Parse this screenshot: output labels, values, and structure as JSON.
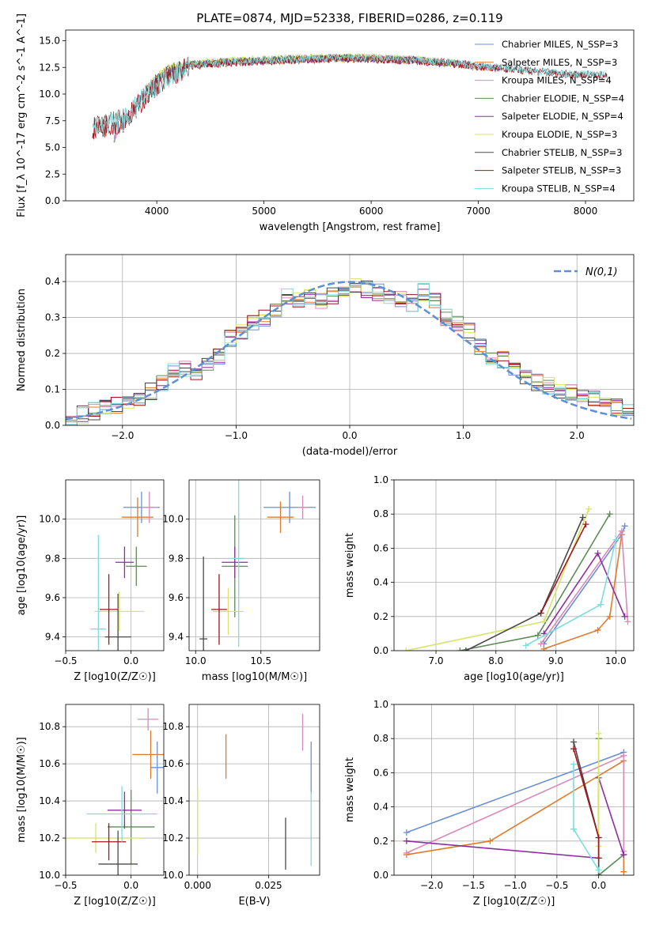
{
  "figure_title": "PLATE=0874, MJD=52338, FIBERID=0286, z=0.119",
  "model_colors": [
    "#6a8fd8",
    "#e07b2a",
    "#d98ab8",
    "#5f8a5a",
    "#8e2ea0",
    "#d7e46a",
    "#4a4a4a",
    "#a3141e",
    "#7fdcdc"
  ],
  "chart_data": [
    {
      "name": "spectrum",
      "type": "line",
      "xlabel": "wavelength [Angstrom, rest frame]",
      "ylabel": "Flux [f_λ 10^-17 erg cm^-2 s^-1 A^-1]",
      "xlim": [
        3150,
        8450
      ],
      "ylim": [
        0,
        16
      ],
      "xticks": [
        4000,
        5000,
        6000,
        7000,
        8000
      ],
      "yticks": [
        0.0,
        2.5,
        5.0,
        7.5,
        10.0,
        12.5,
        15.0
      ],
      "legend_position": "right",
      "series": [
        {
          "name": "Chabrier MILES, N_SSP=3",
          "color": "#6a8fd8",
          "x": [
            3600,
            3800,
            4000,
            4300,
            4600,
            5000,
            5500,
            6000,
            6500,
            7000,
            7200
          ],
          "y": [
            5.8,
            9.0,
            11.5,
            12.8,
            13.0,
            13.2,
            13.4,
            13.4,
            13.2,
            12.6,
            12.4
          ]
        },
        {
          "name": "Salpeter MILES, N_SSP=3",
          "color": "#e07b2a",
          "x": [
            3600,
            3800,
            4000,
            4300,
            4600,
            5000,
            5500,
            6000,
            6500,
            7000,
            7200
          ],
          "y": [
            5.7,
            8.9,
            11.4,
            12.7,
            12.9,
            13.1,
            13.3,
            13.3,
            13.1,
            12.5,
            12.3
          ]
        },
        {
          "name": "Kroupa MILES, N_SSP=4",
          "color": "#d98ab8",
          "x": [
            3600,
            3800,
            4000,
            4300,
            4600,
            5000,
            5500,
            6000,
            6500,
            7000,
            7200
          ],
          "y": [
            5.8,
            9.0,
            11.5,
            12.8,
            13.0,
            13.2,
            13.4,
            13.4,
            13.2,
            12.6,
            12.4
          ]
        },
        {
          "name": "Chabrier ELODIE, N_SSP=4",
          "color": "#5f8a5a",
          "x": [
            3900,
            4100,
            4400,
            4800,
            5200,
            5600,
            6000,
            6400,
            6800
          ],
          "y": [
            10.5,
            12.4,
            12.9,
            13.1,
            13.3,
            13.4,
            13.4,
            13.2,
            12.8
          ]
        },
        {
          "name": "Salpeter ELODIE, N_SSP=4",
          "color": "#8e2ea0",
          "x": [
            3900,
            4100,
            4400,
            4800,
            5200,
            5600,
            6000,
            6400,
            6800
          ],
          "y": [
            10.4,
            12.3,
            12.8,
            13.0,
            13.2,
            13.3,
            13.3,
            13.1,
            12.7
          ]
        },
        {
          "name": "Kroupa ELODIE, N_SSP=3",
          "color": "#d7e46a",
          "x": [
            3900,
            4100,
            4400,
            4800,
            5200,
            5600,
            6000,
            6400,
            6800
          ],
          "y": [
            10.6,
            12.5,
            13.0,
            13.2,
            13.4,
            13.5,
            13.5,
            13.3,
            12.9
          ]
        },
        {
          "name": "Chabrier STELIB, N_SSP=3",
          "color": "#4a4a4a",
          "x": [
            3400,
            3700,
            4000,
            4300,
            4700,
            5200,
            5700,
            6200,
            6700,
            7200,
            7700,
            8200
          ],
          "y": [
            6.8,
            7.6,
            11.0,
            12.7,
            13.0,
            13.2,
            13.4,
            13.3,
            13.0,
            12.5,
            12.0,
            11.8
          ]
        },
        {
          "name": "Salpeter STELIB, N_SSP=3",
          "color": "#a3141e",
          "x": [
            3400,
            3700,
            4000,
            4300,
            4700,
            5200,
            5700,
            6200,
            6700,
            7200,
            7700,
            8200
          ],
          "y": [
            6.7,
            7.5,
            10.9,
            12.6,
            12.9,
            13.1,
            13.3,
            13.2,
            12.9,
            12.4,
            11.9,
            11.7
          ]
        },
        {
          "name": "Kroupa STELIB, N_SSP=4",
          "color": "#7fdcdc",
          "x": [
            3400,
            3700,
            4000,
            4300,
            4700,
            5200,
            5700,
            6200,
            6700,
            7200,
            7700,
            8200
          ],
          "y": [
            6.8,
            7.6,
            11.0,
            12.7,
            13.0,
            13.2,
            13.4,
            13.3,
            13.0,
            12.5,
            12.0,
            11.8
          ]
        }
      ]
    },
    {
      "name": "residuals",
      "type": "histogram",
      "xlabel": "(data-model)/error",
      "ylabel": "Normed distribution",
      "xlim": [
        -2.5,
        2.5
      ],
      "ylim": [
        0,
        0.475
      ],
      "xticks": [
        -2,
        -1,
        0,
        1,
        2
      ],
      "yticks": [
        0.0,
        0.1,
        0.2,
        0.3,
        0.4
      ],
      "grid": true,
      "legend_position": "top-right",
      "reference_curve": {
        "name": "N(0,1)",
        "mean": 0,
        "sigma": 1,
        "color": "#5b8fd6"
      },
      "bin_edges": [
        -2.5,
        -2.4,
        -2.3,
        -2.2,
        -2.1,
        -2.0,
        -1.9,
        -1.8,
        -1.7,
        -1.6,
        -1.5,
        -1.4,
        -1.3,
        -1.2,
        -1.1,
        -1.0,
        -0.9,
        -0.8,
        -0.7,
        -0.6,
        -0.5,
        -0.4,
        -0.3,
        -0.2,
        -0.1,
        0.0,
        0.1,
        0.2,
        0.3,
        0.4,
        0.5,
        0.6,
        0.7,
        0.8,
        0.9,
        1.0,
        1.1,
        1.2,
        1.3,
        1.4,
        1.5,
        1.6,
        1.7,
        1.8,
        1.9,
        2.0,
        2.1,
        2.2,
        2.3,
        2.4,
        2.5
      ],
      "approx_density": [
        0.02,
        0.03,
        0.04,
        0.05,
        0.055,
        0.06,
        0.08,
        0.095,
        0.12,
        0.15,
        0.16,
        0.15,
        0.17,
        0.19,
        0.24,
        0.26,
        0.29,
        0.3,
        0.32,
        0.36,
        0.35,
        0.36,
        0.35,
        0.36,
        0.38,
        0.39,
        0.38,
        0.37,
        0.36,
        0.35,
        0.34,
        0.37,
        0.35,
        0.3,
        0.28,
        0.26,
        0.22,
        0.19,
        0.18,
        0.16,
        0.14,
        0.12,
        0.11,
        0.1,
        0.09,
        0.08,
        0.07,
        0.055,
        0.05,
        0.04
      ]
    },
    {
      "name": "age-vs-Z",
      "type": "errorbar",
      "xlabel": "Z [log10(Z/Z☉)]",
      "ylabel": "age [log10(age/yr)]",
      "xlim": [
        -0.5,
        0.25
      ],
      "ylim": [
        9.33,
        10.2
      ],
      "xticks": [
        -0.5,
        0.0
      ],
      "yticks": [
        9.4,
        9.6,
        9.8,
        10.0
      ],
      "grid": true,
      "points": [
        {
          "x": 0.08,
          "y": 10.06,
          "xerr": 0.14,
          "yerr": 0.08,
          "color": "#6a8fd8"
        },
        {
          "x": 0.05,
          "y": 10.01,
          "xerr": 0.12,
          "yerr": 0.1,
          "color": "#e07b2a"
        },
        {
          "x": 0.14,
          "y": 10.06,
          "xerr": 0.06,
          "yerr": 0.08,
          "color": "#d98ab8"
        },
        {
          "x": 0.04,
          "y": 9.76,
          "xerr": 0.08,
          "yerr": 0.1,
          "color": "#5f8a5a"
        },
        {
          "x": -0.05,
          "y": 9.78,
          "xerr": 0.07,
          "yerr": 0.08,
          "color": "#8e2ea0"
        },
        {
          "x": -0.09,
          "y": 9.53,
          "xerr": 0.19,
          "yerr": 0.1,
          "color": "#d7e46a"
        },
        {
          "x": -0.1,
          "y": 9.4,
          "xerr": 0.1,
          "yerr": 0.22,
          "color": "#4a4a4a"
        },
        {
          "x": -0.17,
          "y": 9.54,
          "xerr": 0.07,
          "yerr": 0.18,
          "color": "#a3141e"
        },
        {
          "x": -0.25,
          "y": 9.44,
          "xerr": 0.06,
          "yerr": 0.48,
          "color": "#7fdcdc"
        }
      ]
    },
    {
      "name": "age-vs-mass",
      "type": "errorbar",
      "xlabel": "mass [log10(M/M☉)]",
      "ylabel": "",
      "xlim": [
        9.95,
        10.95
      ],
      "ylim": [
        9.33,
        10.2
      ],
      "xticks": [
        10.0,
        10.5
      ],
      "yticks": [
        9.4,
        9.6,
        9.8,
        10.0
      ],
      "grid": true,
      "points": [
        {
          "x": 10.72,
          "y": 10.06,
          "xerr": 0.2,
          "yerr": 0.08,
          "color": "#6a8fd8"
        },
        {
          "x": 10.65,
          "y": 10.01,
          "xerr": 0.1,
          "yerr": 0.08,
          "color": "#e07b2a"
        },
        {
          "x": 10.82,
          "y": 10.06,
          "xerr": 0.04,
          "yerr": 0.06,
          "color": "#d98ab8"
        },
        {
          "x": 10.3,
          "y": 9.76,
          "xerr": 0.1,
          "yerr": 0.26,
          "color": "#5f8a5a"
        },
        {
          "x": 10.3,
          "y": 9.78,
          "xerr": 0.1,
          "yerr": 0.08,
          "color": "#8e2ea0"
        },
        {
          "x": 10.25,
          "y": 9.53,
          "xerr": 0.12,
          "yerr": 0.12,
          "color": "#d7e46a"
        },
        {
          "x": 10.06,
          "y": 9.39,
          "xerr": 0.03,
          "yerr": 0.42,
          "color": "#4a4a4a"
        },
        {
          "x": 10.18,
          "y": 9.54,
          "xerr": 0.06,
          "yerr": 0.18,
          "color": "#a3141e"
        },
        {
          "x": 10.33,
          "y": 9.8,
          "xerr": 0.05,
          "yerr": 0.45,
          "color": "#7fdcdc"
        }
      ]
    },
    {
      "name": "mass-weight-vs-age",
      "type": "line",
      "xlabel": "age [log10(age/yr)]",
      "ylabel": "mass weight",
      "xlim": [
        6.3,
        10.3
      ],
      "ylim": [
        0,
        1
      ],
      "xticks": [
        7,
        8,
        9,
        10
      ],
      "yticks": [
        0.0,
        0.2,
        0.4,
        0.6,
        0.8,
        1.0
      ],
      "grid": true,
      "series": [
        {
          "color": "#6a8fd8",
          "x": [
            8.8,
            10.1,
            10.15
          ],
          "y": [
            0.04,
            0.68,
            0.73
          ]
        },
        {
          "color": "#e07b2a",
          "x": [
            8.8,
            9.7,
            9.9,
            10.1
          ],
          "y": [
            0.01,
            0.12,
            0.2,
            0.68
          ]
        },
        {
          "color": "#d98ab8",
          "x": [
            8.75,
            10.1,
            10.2
          ],
          "y": [
            0.04,
            0.7,
            0.17
          ]
        },
        {
          "color": "#5f8a5a",
          "x": [
            7.4,
            8.7,
            9.9
          ],
          "y": [
            0.0,
            0.09,
            0.8
          ]
        },
        {
          "color": "#8e2ea0",
          "x": [
            8.8,
            9.7,
            10.15
          ],
          "y": [
            0.1,
            0.57,
            0.2
          ]
        },
        {
          "color": "#d7e46a",
          "x": [
            6.5,
            8.8,
            9.55
          ],
          "y": [
            0.0,
            0.17,
            0.83
          ]
        },
        {
          "color": "#4a4a4a",
          "x": [
            7.5,
            8.75,
            9.45
          ],
          "y": [
            0.0,
            0.22,
            0.78
          ]
        },
        {
          "color": "#a3141e",
          "x": [
            8.75,
            9.5
          ],
          "y": [
            0.22,
            0.74
          ]
        },
        {
          "color": "#7fdcdc",
          "x": [
            8.5,
            9.75,
            10.0
          ],
          "y": [
            0.03,
            0.27,
            0.65
          ]
        }
      ]
    },
    {
      "name": "mass-vs-Z",
      "type": "errorbar",
      "xlabel": "Z [log10(Z/Z☉)]",
      "ylabel": "mass [log10(M/M☉)]",
      "xlim": [
        -0.5,
        0.25
      ],
      "ylim": [
        10.0,
        10.92
      ],
      "xticks": [
        -0.5,
        0.0
      ],
      "yticks": [
        10.0,
        10.2,
        10.4,
        10.6,
        10.8
      ],
      "grid": true,
      "points": [
        {
          "x": 0.2,
          "y": 10.58,
          "xerr": 0.05,
          "yerr": 0.14,
          "color": "#6a8fd8"
        },
        {
          "x": 0.15,
          "y": 10.65,
          "xerr": 0.14,
          "yerr": 0.13,
          "color": "#e07b2a"
        },
        {
          "x": 0.13,
          "y": 10.84,
          "xerr": 0.08,
          "yerr": 0.06,
          "color": "#d98ab8"
        },
        {
          "x": 0.0,
          "y": 10.26,
          "xerr": 0.18,
          "yerr": 0.2,
          "color": "#5f8a5a"
        },
        {
          "x": -0.05,
          "y": 10.35,
          "xerr": 0.13,
          "yerr": 0.1,
          "color": "#8e2ea0"
        },
        {
          "x": -0.27,
          "y": 10.2,
          "xerr": 0.35,
          "yerr": 0.08,
          "color": "#d7e46a"
        },
        {
          "x": -0.1,
          "y": 10.06,
          "xerr": 0.15,
          "yerr": 0.18,
          "color": "#4a4a4a"
        },
        {
          "x": -0.17,
          "y": 10.18,
          "xerr": 0.13,
          "yerr": 0.1,
          "color": "#a3141e"
        },
        {
          "x": -0.07,
          "y": 10.33,
          "xerr": 0.27,
          "yerr": 0.15,
          "color": "#7fdcdc"
        }
      ]
    },
    {
      "name": "mass-vs-EBV",
      "type": "errorbar",
      "xlabel": "E(B-V)",
      "ylabel": "",
      "xlim": [
        -0.003,
        0.043
      ],
      "ylim": [
        10.0,
        10.92
      ],
      "xticks": [
        0.0,
        0.025
      ],
      "yticks": [
        10.0,
        10.2,
        10.4,
        10.6,
        10.8
      ],
      "grid": true,
      "points": [
        {
          "x": 0.04,
          "y": 10.58,
          "xerr": 0,
          "yerr": 0.14,
          "color": "#6a8fd8"
        },
        {
          "x": 0.01,
          "y": 10.64,
          "xerr": 0,
          "yerr": 0.12,
          "color": "#e07b2a"
        },
        {
          "x": 0.037,
          "y": 10.77,
          "xerr": 0,
          "yerr": 0.1,
          "color": "#d98ab8"
        },
        {
          "x": 0.0,
          "y": 10.29,
          "xerr": 0,
          "yerr": 0.18,
          "color": "#d7e46a"
        },
        {
          "x": 0.031,
          "y": 10.17,
          "xerr": 0,
          "yerr": 0.14,
          "color": "#4a4a4a"
        },
        {
          "x": 0.04,
          "y": 10.25,
          "xerr": 0,
          "yerr": 0.2,
          "color": "#7fdcdc"
        }
      ]
    },
    {
      "name": "mass-weight-vs-Z",
      "type": "line",
      "xlabel": "Z [log10(Z/Z☉)]",
      "ylabel": "mass weight",
      "xlim": [
        -2.45,
        0.42
      ],
      "ylim": [
        0,
        1
      ],
      "xticks": [
        -2.0,
        -1.5,
        -1.0,
        -0.5,
        0.0
      ],
      "yticks": [
        0.0,
        0.2,
        0.4,
        0.6,
        0.8,
        1.0
      ],
      "grid": true,
      "series": [
        {
          "color": "#6a8fd8",
          "x": [
            -2.3,
            0.3
          ],
          "y": [
            0.25,
            0.72
          ]
        },
        {
          "color": "#e07b2a",
          "x": [
            -2.3,
            -1.3,
            0.3,
            0.3
          ],
          "y": [
            0.12,
            0.2,
            0.67,
            0.02
          ]
        },
        {
          "color": "#d98ab8",
          "x": [
            -2.3,
            0.3,
            0.3
          ],
          "y": [
            0.13,
            0.7,
            0.14
          ]
        },
        {
          "color": "#5f8a5a",
          "x": [
            0.0,
            0.0,
            0.3
          ],
          "y": [
            0.8,
            0.0,
            0.12
          ]
        },
        {
          "color": "#8e2ea0",
          "x": [
            -2.3,
            0.0,
            0.0,
            0.3
          ],
          "y": [
            0.2,
            0.1,
            0.57,
            0.12
          ]
        },
        {
          "color": "#d7e46a",
          "x": [
            0.0,
            0.0
          ],
          "y": [
            0.83,
            0.17
          ]
        },
        {
          "color": "#4a4a4a",
          "x": [
            -0.3,
            0.0,
            0.0
          ],
          "y": [
            0.78,
            0.22,
            0.0
          ]
        },
        {
          "color": "#a3141e",
          "x": [
            -0.3,
            0.0,
            0.0
          ],
          "y": [
            0.74,
            0.22,
            0.1
          ]
        },
        {
          "color": "#7fdcdc",
          "x": [
            -0.3,
            -0.3,
            0.0
          ],
          "y": [
            0.65,
            0.27,
            0.03
          ]
        }
      ]
    }
  ]
}
